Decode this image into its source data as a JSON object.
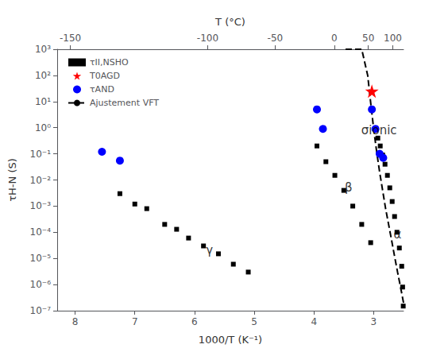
{
  "chart_data": {
    "type": "scatter",
    "xlabel": "1000/T (K⁻¹)",
    "ylabel": "τH-N (S)",
    "x2label": "T (°C)",
    "log": "y",
    "grid": false,
    "legend": "upper left",
    "xlim": [
      8.3,
      2.5
    ],
    "xticks": [
      3,
      4,
      5,
      6,
      7,
      8
    ],
    "x2lim": [
      8.3,
      2.5
    ],
    "x2ticks": [
      {
        "value": 8.08,
        "label": "-150"
      },
      {
        "value": 5.78,
        "label": "-100"
      },
      {
        "value": 4.65,
        "label": "-50"
      },
      {
        "value": 3.66,
        "label": "0"
      },
      {
        "value": 3.09,
        "label": "50"
      },
      {
        "value": 2.68,
        "label": "100"
      }
    ],
    "ylim": [
      1e-07,
      1000
    ],
    "yticks": [
      {
        "value": 1e-07,
        "label": "10⁻⁷"
      },
      {
        "value": 1e-06,
        "label": "10⁻⁶"
      },
      {
        "value": 1e-05,
        "label": "10⁻⁵"
      },
      {
        "value": 0.0001,
        "label": "10⁻⁴"
      },
      {
        "value": 0.001,
        "label": "10⁻³"
      },
      {
        "value": 0.01,
        "label": "10⁻²"
      },
      {
        "value": 0.1,
        "label": "10⁻¹"
      },
      {
        "value": 1,
        "label": "10⁰"
      },
      {
        "value": 10,
        "label": "10¹"
      },
      {
        "value": 100,
        "label": "10²"
      },
      {
        "value": 1000,
        "label": "10³"
      }
    ],
    "series": [
      {
        "name": "τII,NSHO",
        "type": "scatter",
        "marker": "square",
        "color": "black",
        "x": [
          7.25,
          7.0,
          6.8,
          6.5,
          6.3,
          6.1,
          5.85,
          5.6,
          5.35,
          5.1,
          3.95,
          3.8,
          3.65,
          3.5,
          3.35,
          3.2,
          3.05,
          2.97,
          2.93,
          2.89,
          2.85,
          2.81,
          2.77,
          2.73,
          2.69,
          2.65,
          2.61,
          2.57,
          2.53,
          2.515,
          2.505
        ],
        "values": [
          0.003,
          0.0012,
          0.0008,
          0.0002,
          0.00013,
          6e-05,
          3e-05,
          1.5e-05,
          6e-06,
          3e-06,
          0.2,
          0.05,
          0.015,
          0.004,
          0.001,
          0.0002,
          4e-05,
          0.9,
          0.4,
          0.2,
          0.09,
          0.04,
          0.015,
          0.005,
          0.0015,
          0.0004,
          0.0001,
          2.5e-05,
          5e-06,
          8e-07,
          1.5e-07
        ]
      },
      {
        "name": "T0AGD",
        "type": "scatter",
        "marker": "star",
        "color": "red",
        "x": [
          3.03
        ],
        "values": [
          25.0
        ]
      },
      {
        "name": "τAND",
        "type": "scatter",
        "marker": "circle",
        "color": "blue",
        "x": [
          7.55,
          7.25,
          3.95,
          3.85,
          3.03,
          2.97,
          2.9,
          2.84
        ],
        "values": [
          0.12,
          0.055,
          5.0,
          0.9,
          5.0,
          0.9,
          0.1,
          0.07
        ]
      },
      {
        "name": "Ajustement VFT",
        "type": "line",
        "line_style": "dashed",
        "color": "black",
        "x": [
          2.5,
          2.55,
          2.6,
          2.65,
          2.7,
          2.75,
          2.8,
          2.85,
          2.9,
          2.95,
          3.0,
          3.05,
          3.1,
          3.2,
          3.3,
          3.4,
          3.5
        ],
        "values": [
          2e-07,
          8e-07,
          3e-06,
          1.2e-05,
          5e-05,
          0.0002,
          0.0008,
          0.004,
          0.02,
          0.12,
          0.9,
          9.0,
          100.0,
          1000.0,
          1000.0,
          1000.0,
          1000.0
        ]
      }
    ],
    "annotations": [
      {
        "text": "γ",
        "x": 5.75,
        "y": 2e-05
      },
      {
        "text": "β",
        "x": 3.42,
        "y": 0.005
      },
      {
        "text": "α",
        "x": 2.6,
        "y": 8e-05
      },
      {
        "text": "σionic",
        "x": 2.91,
        "y": 0.8
      }
    ]
  }
}
